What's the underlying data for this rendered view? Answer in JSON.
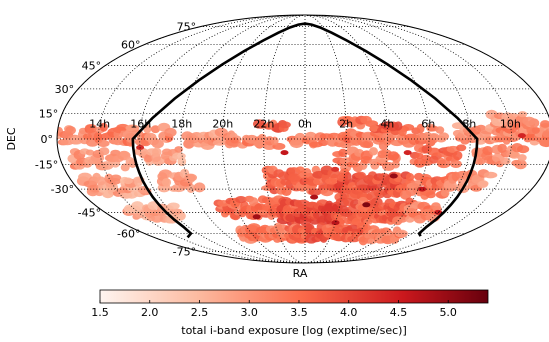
{
  "chart_data": {
    "type": "heatmap",
    "projection": "mollweide",
    "xlabel": "RA",
    "ylabel": "DEC",
    "ra_tick_labels": [
      "14h",
      "16h",
      "18h",
      "20h",
      "22h",
      "0h",
      "2h",
      "4h",
      "6h",
      "8h",
      "10h"
    ],
    "dec_tick_labels": [
      "75°",
      "60°",
      "45°",
      "30°",
      "15°",
      "0°",
      "-15°",
      "-30°",
      "-45°",
      "-60°",
      "-75°"
    ],
    "grid": true,
    "colorbar": {
      "label": "total i-band exposure [log (exptime/sec)]",
      "ticks": [
        "1.5",
        "2.0",
        "2.5",
        "3.0",
        "3.5",
        "4.0",
        "4.5",
        "5.0"
      ],
      "range": [
        1.5,
        5.4
      ],
      "cmap": [
        "#fff5f0",
        "#fcbba1",
        "#fb6a4a",
        "#cb181d",
        "#67000d"
      ],
      "placement": "bottom"
    },
    "footprint_outline": {
      "description_visible": "thick black boundary",
      "color": "#000000"
    },
    "exposure_regions": [
      {
        "ra_h": 12.0,
        "dec": 2,
        "d_ra_h": 2.5,
        "d_dec": 10,
        "value": 3.1
      },
      {
        "ra_h": 14.5,
        "dec": 2,
        "d_ra_h": 2.5,
        "d_dec": 10,
        "value": 3.3
      },
      {
        "ra_h": 16.5,
        "dec": 2,
        "d_ra_h": 2.0,
        "d_dec": 10,
        "value": 3.2
      },
      {
        "ra_h": 19.5,
        "dec": 0,
        "d_ra_h": 2.5,
        "d_dec": 8,
        "value": 3.0
      },
      {
        "ra_h": 21.5,
        "dec": -2,
        "d_ra_h": 2.5,
        "d_dec": 6,
        "value": 3.3
      },
      {
        "ra_h": 0.5,
        "dec": -1,
        "d_ra_h": 2.5,
        "d_dec": 6,
        "value": 3.2
      },
      {
        "ra_h": 3.0,
        "dec": 0,
        "d_ra_h": 2.5,
        "d_dec": 8,
        "value": 3.4
      },
      {
        "ra_h": 5.5,
        "dec": 2,
        "d_ra_h": 2.5,
        "d_dec": 10,
        "value": 3.3
      },
      {
        "ra_h": 8.5,
        "dec": 3,
        "d_ra_h": 2.5,
        "d_dec": 10,
        "value": 3.0
      },
      {
        "ra_h": 10.5,
        "dec": 5,
        "d_ra_h": 2.5,
        "d_dec": 12,
        "value": 3.2
      },
      {
        "ra_h": 10.0,
        "dec": 12,
        "d_ra_h": 2.0,
        "d_dec": 6,
        "value": 2.9
      },
      {
        "ra_h": 14.0,
        "dec": -12,
        "d_ra_h": 3.0,
        "d_dec": 10,
        "value": 3.0
      },
      {
        "ra_h": 17.0,
        "dec": -10,
        "d_ra_h": 2.0,
        "d_dec": 8,
        "value": 2.8
      },
      {
        "ra_h": 3.0,
        "dec": -12,
        "d_ra_h": 3.0,
        "d_dec": 10,
        "value": 3.3
      },
      {
        "ra_h": 6.5,
        "dec": -10,
        "d_ra_h": 2.5,
        "d_dec": 10,
        "value": 3.5
      },
      {
        "ra_h": 9.5,
        "dec": -10,
        "d_ra_h": 2.5,
        "d_dec": 10,
        "value": 3.1
      },
      {
        "ra_h": 14.0,
        "dec": -28,
        "d_ra_h": 3.0,
        "d_dec": 12,
        "value": 2.8
      },
      {
        "ra_h": 17.5,
        "dec": -25,
        "d_ra_h": 2.0,
        "d_dec": 10,
        "value": 3.0
      },
      {
        "ra_h": 0.0,
        "dec": -25,
        "d_ra_h": 4.0,
        "d_dec": 14,
        "value": 3.6
      },
      {
        "ra_h": 3.5,
        "dec": -28,
        "d_ra_h": 3.5,
        "d_dec": 14,
        "value": 3.8
      },
      {
        "ra_h": 6.5,
        "dec": -28,
        "d_ra_h": 2.5,
        "d_dec": 12,
        "value": 3.4
      },
      {
        "ra_h": 8.5,
        "dec": -25,
        "d_ra_h": 2.0,
        "d_dec": 10,
        "value": 3.0
      },
      {
        "ra_h": 21.0,
        "dec": -42,
        "d_ra_h": 4.0,
        "d_dec": 12,
        "value": 3.5
      },
      {
        "ra_h": 0.5,
        "dec": -45,
        "d_ra_h": 4.0,
        "d_dec": 14,
        "value": 3.9
      },
      {
        "ra_h": 4.5,
        "dec": -45,
        "d_ra_h": 3.5,
        "d_dec": 14,
        "value": 3.6
      },
      {
        "ra_h": 7.0,
        "dec": -45,
        "d_ra_h": 2.0,
        "d_dec": 10,
        "value": 3.2
      },
      {
        "ra_h": 15.0,
        "dec": -45,
        "d_ra_h": 3.0,
        "d_dec": 10,
        "value": 2.7
      },
      {
        "ra_h": 21.5,
        "dec": -60,
        "d_ra_h": 5.0,
        "d_dec": 10,
        "value": 3.4
      },
      {
        "ra_h": 2.0,
        "dec": -60,
        "d_ra_h": 6.0,
        "d_dec": 10,
        "value": 3.7
      },
      {
        "ra_h": 6.0,
        "dec": -62,
        "d_ra_h": 3.0,
        "d_dec": 8,
        "value": 3.2
      },
      {
        "ra_h": 22.5,
        "dec": 8,
        "d_ra_h": 1.5,
        "d_dec": 4,
        "value": 3.6
      },
      {
        "ra_h": 2.5,
        "dec": 10,
        "d_ra_h": 1.5,
        "d_dec": 4,
        "value": 3.5
      },
      {
        "ra_h": 4.0,
        "dec": 6,
        "d_ra_h": 1.5,
        "d_dec": 4,
        "value": 3.7
      }
    ],
    "hot_spots": [
      {
        "ra_h": 4.5,
        "dec": -22,
        "value": 5.0
      },
      {
        "ra_h": 3.5,
        "dec": -40,
        "value": 5.2
      },
      {
        "ra_h": 0.5,
        "dec": -35,
        "value": 4.8
      },
      {
        "ra_h": 6.2,
        "dec": -30,
        "value": 4.6
      },
      {
        "ra_h": 21.0,
        "dec": -48,
        "value": 4.9
      },
      {
        "ra_h": 2.0,
        "dec": -52,
        "value": 4.7
      },
      {
        "ra_h": 8.0,
        "dec": -45,
        "value": 4.5
      },
      {
        "ra_h": 10.5,
        "dec": 2,
        "value": 4.4
      },
      {
        "ra_h": 16.0,
        "dec": -5,
        "value": 4.3
      },
      {
        "ra_h": 23.0,
        "dec": -8,
        "value": 4.6
      },
      {
        "ra_h": 5.0,
        "dec": -8,
        "value": 4.4
      },
      {
        "ra_h": 1.5,
        "dec": -18,
        "value": 4.2
      }
    ]
  }
}
